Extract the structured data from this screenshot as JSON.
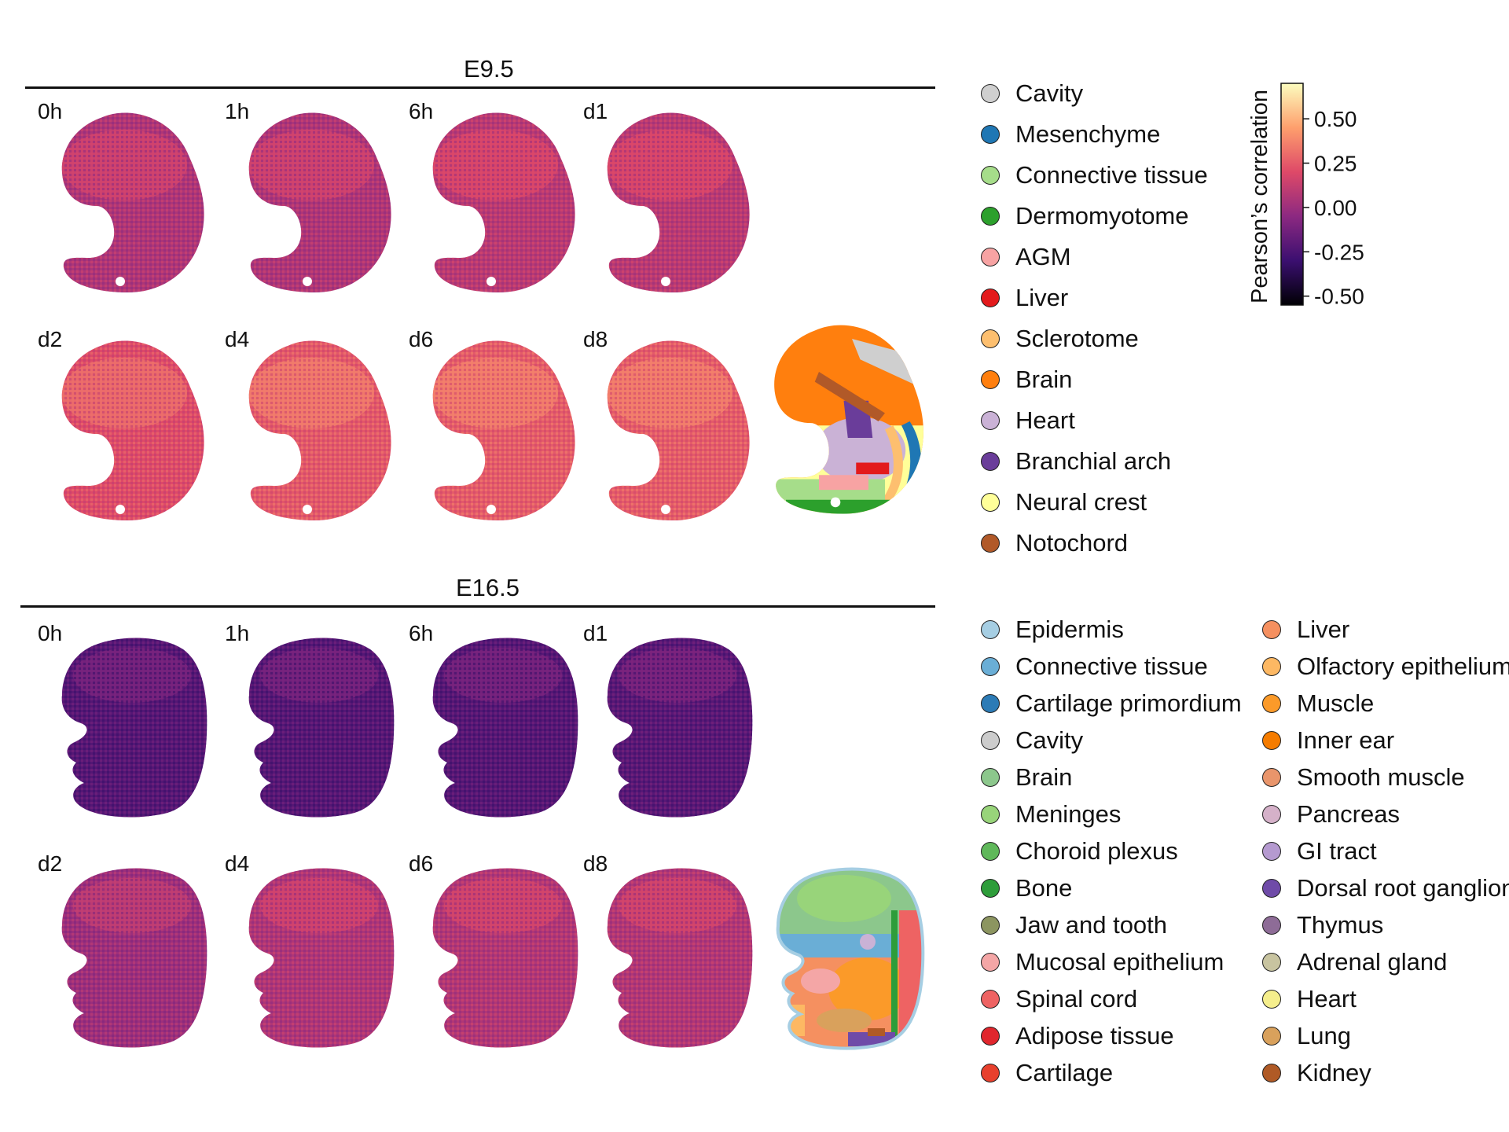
{
  "chart_data": {
    "type": "heatmap",
    "sections": [
      {
        "title": "E9.5",
        "timepoints": [
          "0h",
          "1h",
          "6h",
          "d1",
          "d2",
          "d4",
          "d6",
          "d8"
        ],
        "mean_correlation": [
          0.05,
          0.05,
          0.08,
          0.08,
          0.2,
          0.24,
          0.25,
          0.25
        ]
      },
      {
        "title": "E16.5",
        "timepoints": [
          "0h",
          "1h",
          "6h",
          "d1",
          "d2",
          "d4",
          "d6",
          "d8"
        ],
        "mean_correlation": [
          -0.22,
          -0.22,
          -0.22,
          -0.21,
          0.0,
          0.05,
          0.06,
          0.06
        ]
      }
    ],
    "colorbar": {
      "label": "Pearson’s correlation",
      "ticks": [
        "0.50",
        "0.25",
        "0.00",
        "-0.25",
        "-0.50"
      ],
      "range": [
        -0.55,
        0.7
      ],
      "colormap": [
        "#000004",
        "#3b0f70",
        "#8c2981",
        "#de4968",
        "#fe9f6d",
        "#fcfdbf"
      ]
    }
  },
  "legend_e95": [
    {
      "label": "Cavity",
      "color": "#cfcfcf"
    },
    {
      "label": "Mesenchyme",
      "color": "#1f77b4"
    },
    {
      "label": "Connective tissue",
      "color": "#a6dd8a"
    },
    {
      "label": "Dermomyotome",
      "color": "#2ca02c"
    },
    {
      "label": "AGM",
      "color": "#f7a3a3"
    },
    {
      "label": "Liver",
      "color": "#e31a1c"
    },
    {
      "label": "Sclerotome",
      "color": "#fdbf6f"
    },
    {
      "label": "Brain",
      "color": "#ff7f0e"
    },
    {
      "label": "Heart",
      "color": "#cab2d6"
    },
    {
      "label": "Branchial arch",
      "color": "#6a3d9a"
    },
    {
      "label": "Neural crest",
      "color": "#ffff99"
    },
    {
      "label": "Notochord",
      "color": "#b15928"
    }
  ],
  "legend_e165_col1": [
    {
      "label": "Epidermis",
      "color": "#a6cee3"
    },
    {
      "label": "Connective tissue",
      "color": "#6aaed6"
    },
    {
      "label": "Cartilage primordium",
      "color": "#2c7bb6"
    },
    {
      "label": "Cavity",
      "color": "#cccccc"
    },
    {
      "label": "Brain",
      "color": "#8cc78c"
    },
    {
      "label": "Meninges",
      "color": "#98d47a"
    },
    {
      "label": "Choroid plexus",
      "color": "#5fb85a"
    },
    {
      "label": "Bone",
      "color": "#2e9d3a"
    },
    {
      "label": "Jaw and tooth",
      "color": "#8c9560"
    },
    {
      "label": "Mucosal epithelium",
      "color": "#f4a6a6"
    },
    {
      "label": "Spinal cord",
      "color": "#ee6363"
    },
    {
      "label": "Adipose tissue",
      "color": "#e0262d"
    },
    {
      "label": "Cartilage",
      "color": "#e8402d"
    }
  ],
  "legend_e165_col2": [
    {
      "label": "Liver",
      "color": "#f59060"
    },
    {
      "label": "Olfactory epithelium",
      "color": "#fdb863"
    },
    {
      "label": "Muscle",
      "color": "#fb9a29"
    },
    {
      "label": "Inner ear",
      "color": "#f57c00"
    },
    {
      "label": "Smooth muscle",
      "color": "#e9956b"
    },
    {
      "label": "Pancreas",
      "color": "#d5b1c9"
    },
    {
      "label": "GI tract",
      "color": "#b59ad0"
    },
    {
      "label": "Dorsal root ganglion",
      "color": "#6f4ba8"
    },
    {
      "label": "Thymus",
      "color": "#8e6c97"
    },
    {
      "label": "Adrenal gland",
      "color": "#c8c4a0"
    },
    {
      "label": "Heart",
      "color": "#f5ee8c"
    },
    {
      "label": "Lung",
      "color": "#d9a15c"
    },
    {
      "label": "Kidney",
      "color": "#b05a26"
    }
  ]
}
